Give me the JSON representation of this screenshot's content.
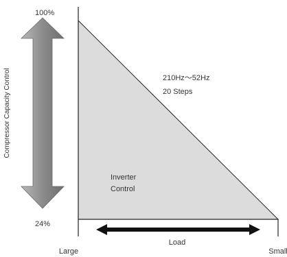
{
  "diagram": {
    "top_percent": "100%",
    "bottom_percent": "24%",
    "vertical_axis_label": "Compressor Capacity Control",
    "frequency_range": "210Hz～52Hz",
    "steps": "20 Steps",
    "region_label_line1": "Inverter",
    "region_label_line2": "Control",
    "load_label": "Load",
    "x_left_label": "Large",
    "x_right_label": "Small"
  },
  "colors": {
    "triangle_fill": "#dcdcdc",
    "arrow_fill": "#8c8c8c",
    "line": "#222222",
    "text": "#333333"
  }
}
